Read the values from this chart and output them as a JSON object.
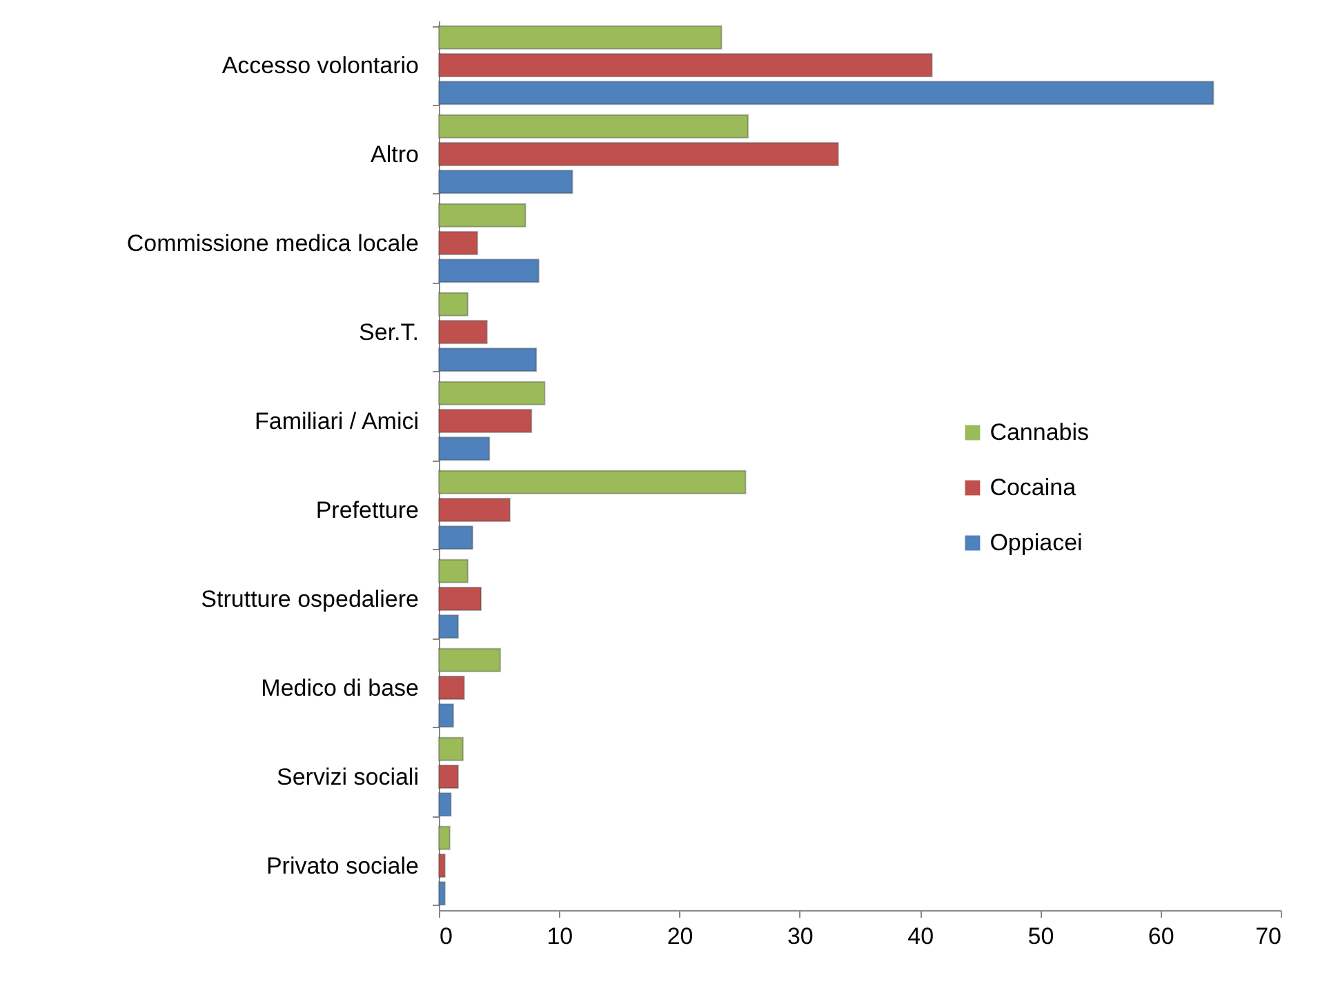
{
  "chart_data": {
    "type": "bar",
    "orientation": "horizontal",
    "categories": [
      "Accesso volontario",
      "Altro",
      "Commissione medica locale",
      "Ser.T.",
      "Familiari / Amici",
      "Prefetture",
      "Strutture ospedaliere",
      "Medico di base",
      "Servizi sociali",
      "Privato sociale"
    ],
    "series": [
      {
        "name": "Cannabis",
        "color": "#9bbb59",
        "values": [
          23.5,
          25.7,
          7.2,
          2.4,
          8.8,
          25.5,
          2.4,
          5.1,
          2.0,
          0.9
        ]
      },
      {
        "name": "Cocaina",
        "color": "#c0504d",
        "values": [
          41.0,
          33.2,
          3.2,
          4.0,
          7.7,
          5.9,
          3.5,
          2.1,
          1.6,
          0.5
        ]
      },
      {
        "name": "Oppiacei",
        "color": "#4f81bd",
        "values": [
          64.4,
          11.1,
          8.3,
          8.1,
          4.2,
          2.8,
          1.6,
          1.2,
          1.0,
          0.5
        ]
      }
    ],
    "xlim": [
      0,
      70
    ],
    "xticks": [
      0,
      10,
      20,
      30,
      40,
      50,
      60,
      70
    ],
    "grid": false,
    "legend": "right"
  }
}
